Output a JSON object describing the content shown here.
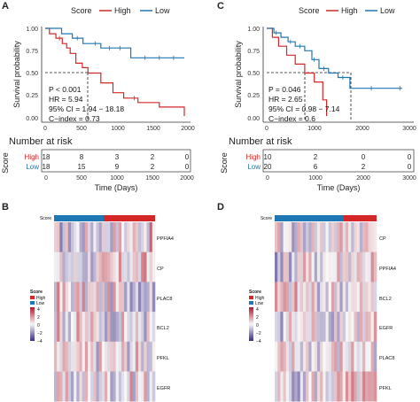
{
  "colors": {
    "high": "#d62728",
    "low": "#1f77b4",
    "cold": "#3b2a82",
    "warm": "#b2182b"
  },
  "panels": {
    "A": {
      "label": "A",
      "legend_title": "Score",
      "legend_high": "High",
      "legend_low": "Low",
      "ylabel": "Survival probability",
      "y_ticks": [
        "0.00",
        "0.25",
        "0.50",
        "0.75",
        "1.00"
      ],
      "x_ticks": [
        "0",
        "500",
        "1000",
        "1500",
        "2000"
      ],
      "stats": [
        "P < 0.001",
        "HR = 5.94",
        "95% CI = 1.94 − 18.18",
        "C−index = 0.73"
      ],
      "risk_title": "Number at risk",
      "risk_ylabel": "Score",
      "risk_high_label": "High",
      "risk_low_label": "Low",
      "risk_high": [
        "18",
        "8",
        "3",
        "2",
        "0"
      ],
      "risk_low": [
        "18",
        "15",
        "9",
        "2",
        "0"
      ],
      "xlabel": "Time (Days)"
    },
    "C": {
      "label": "C",
      "legend_title": "Score",
      "legend_high": "High",
      "legend_low": "Low",
      "ylabel": "Survival probability",
      "y_ticks": [
        "0.00",
        "0.25",
        "0.50",
        "0.75",
        "1.00"
      ],
      "x_ticks": [
        "0",
        "1000",
        "2000",
        "3000"
      ],
      "stats": [
        "P = 0.046",
        "HR = 2.65",
        "95% CI = 0.98 − 7.14",
        "C−index = 0.6"
      ],
      "risk_title": "Number at risk",
      "risk_ylabel": "Score",
      "risk_high_label": "High",
      "risk_low_label": "Low",
      "risk_high": [
        "10",
        "2",
        "0",
        "0"
      ],
      "risk_low": [
        "20",
        "6",
        "2",
        "0"
      ],
      "xlabel": "Time (Days)"
    },
    "B": {
      "label": "B",
      "score_label": "Score",
      "genes": [
        "PPFIA4",
        "CP",
        "PLAC8",
        "BCL2",
        "PFKL",
        "EGFR"
      ],
      "legend_title": "Score",
      "legend_high": "High",
      "legend_low": "Low",
      "scale": [
        "4",
        "2",
        "0",
        "−2",
        "−4"
      ]
    },
    "D": {
      "label": "D",
      "score_label": "Score",
      "genes": [
        "CP",
        "PPFIA4",
        "BCL2",
        "EGFR",
        "PLAC8",
        "PFKL"
      ],
      "legend_title": "Score",
      "legend_high": "High",
      "legend_low": "Low",
      "scale": [
        "4",
        "2",
        "0",
        "−2",
        "−4"
      ]
    }
  },
  "chart_data": [
    {
      "type": "line",
      "title": "",
      "xlabel": "Time (Days)",
      "ylabel": "Survival probability",
      "xlim": [
        0,
        2000
      ],
      "ylim": [
        0,
        1
      ],
      "series": [
        {
          "name": "High",
          "points": [
            [
              0,
              1
            ],
            [
              60,
              0.94
            ],
            [
              150,
              0.89
            ],
            [
              240,
              0.83
            ],
            [
              300,
              0.78
            ],
            [
              350,
              0.72
            ],
            [
              430,
              0.61
            ],
            [
              520,
              0.56
            ],
            [
              600,
              0.5
            ],
            [
              780,
              0.39
            ],
            [
              950,
              0.28
            ],
            [
              1100,
              0.22
            ],
            [
              1300,
              0.17
            ],
            [
              1500,
              0.17
            ],
            [
              1600,
              0.12
            ],
            [
              1950,
              0.12
            ],
            [
              1950,
              0.02
            ]
          ]
        },
        {
          "name": "Low",
          "points": [
            [
              0,
              1
            ],
            [
              230,
              1
            ],
            [
              230,
              0.94
            ],
            [
              380,
              0.94
            ],
            [
              380,
              0.89
            ],
            [
              530,
              0.89
            ],
            [
              530,
              0.83
            ],
            [
              780,
              0.83
            ],
            [
              780,
              0.78
            ],
            [
              1200,
              0.78
            ],
            [
              1200,
              0.67
            ],
            [
              1950,
              0.67
            ]
          ]
        }
      ],
      "risk_table": {
        "times": [
          0,
          500,
          1000,
          1500,
          2000
        ],
        "High": [
          18,
          8,
          3,
          2,
          0
        ],
        "Low": [
          18,
          15,
          9,
          2,
          0
        ]
      }
    },
    {
      "type": "line",
      "title": "",
      "xlabel": "Time (Days)",
      "ylabel": "Survival probability",
      "xlim": [
        0,
        3000
      ],
      "ylim": [
        0,
        1
      ],
      "series": [
        {
          "name": "High",
          "points": [
            [
              0,
              1
            ],
            [
              120,
              0.9
            ],
            [
              250,
              0.8
            ],
            [
              420,
              0.7
            ],
            [
              600,
              0.6
            ],
            [
              800,
              0.5
            ],
            [
              1000,
              0.4
            ],
            [
              1180,
              0.2
            ],
            [
              1260,
              0.2
            ],
            [
              1260,
              0.02
            ]
          ]
        },
        {
          "name": "Low",
          "points": [
            [
              0,
              1
            ],
            [
              150,
              0.95
            ],
            [
              300,
              0.9
            ],
            [
              450,
              0.85
            ],
            [
              600,
              0.8
            ],
            [
              800,
              0.75
            ],
            [
              950,
              0.65
            ],
            [
              1100,
              0.55
            ],
            [
              1300,
              0.5
            ],
            [
              1500,
              0.45
            ],
            [
              1750,
              0.45
            ],
            [
              1750,
              0.33
            ],
            [
              2850,
              0.33
            ]
          ]
        }
      ],
      "risk_table": {
        "times": [
          0,
          1000,
          2000,
          3000
        ],
        "High": [
          10,
          2,
          0,
          0
        ],
        "Low": [
          20,
          6,
          2,
          0
        ]
      }
    }
  ]
}
